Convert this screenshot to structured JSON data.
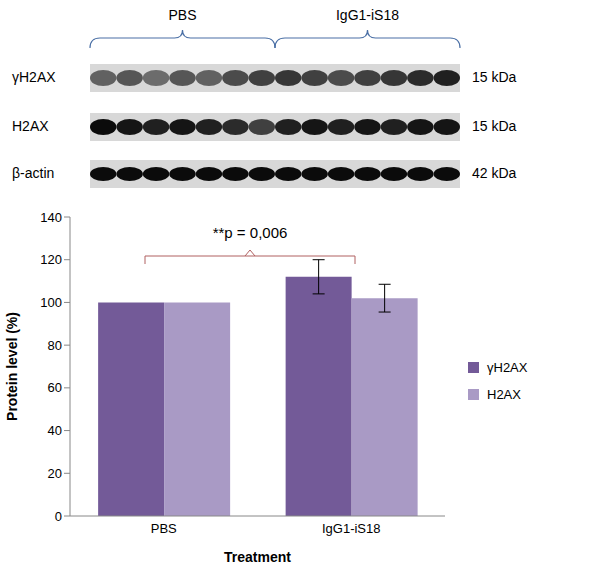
{
  "blot": {
    "groups": [
      "PBS",
      "IgG1-iS18"
    ],
    "rows": [
      {
        "label": "γH2AX",
        "size": "15 kDa"
      },
      {
        "label": "H2AX",
        "size": "15 kDa"
      },
      {
        "label": "β-actin",
        "size": "42 kDa"
      }
    ]
  },
  "chart_data": {
    "type": "bar",
    "categories": [
      "PBS",
      "IgG1-iS18"
    ],
    "series": [
      {
        "name": "γH2AX",
        "color": "#735a98",
        "values": [
          100,
          112
        ],
        "errors": [
          0,
          8
        ]
      },
      {
        "name": "H2AX",
        "color": "#a99ac5",
        "values": [
          100,
          102
        ],
        "errors": [
          0,
          6.5
        ]
      }
    ],
    "xlabel": "Treatment",
    "ylabel": "Protein level (%)",
    "ylim": [
      0,
      140
    ],
    "yticks": [
      0,
      20,
      40,
      60,
      80,
      100,
      120,
      140
    ],
    "annotation": "**p = 0,006",
    "legend": "right",
    "grid": false
  }
}
